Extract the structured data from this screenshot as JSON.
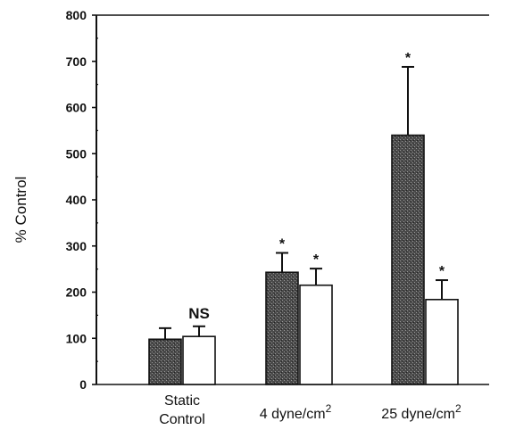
{
  "chart_data": {
    "type": "bar",
    "title": "",
    "xlabel": "",
    "ylabel": "% Control",
    "ylim": [
      0,
      800
    ],
    "yticks": [
      0,
      100,
      200,
      300,
      400,
      500,
      600,
      700,
      800
    ],
    "grid": false,
    "legend": "none",
    "categories": [
      {
        "lines": [
          "Static",
          "Control"
        ]
      },
      {
        "lines": [
          "4 dyne/cm",
          "2"
        ]
      },
      {
        "lines": [
          "25 dyne/cm",
          "2"
        ]
      }
    ],
    "series": [
      {
        "fill": "stippled-dark",
        "color": "#3a3a3a",
        "values": [
          98,
          243,
          540
        ],
        "errors": [
          24,
          42,
          148
        ],
        "annotations": [
          "",
          "*",
          "*"
        ]
      },
      {
        "fill": "open",
        "color": "#ffffff",
        "values": [
          104,
          215,
          184
        ],
        "errors": [
          22,
          36,
          42
        ],
        "annotations": [
          "NS",
          "*",
          "*"
        ]
      }
    ]
  }
}
